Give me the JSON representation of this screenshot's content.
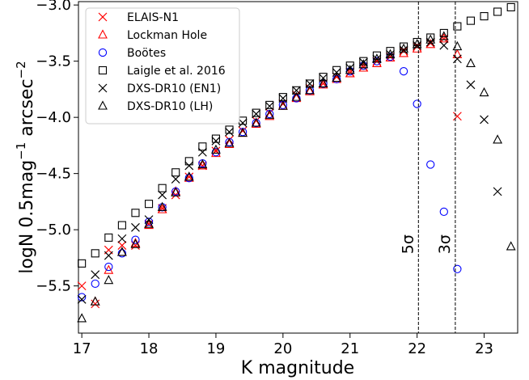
{
  "chart_data": {
    "type": "scatter",
    "xlabel": "K magnitude",
    "ylabel": "logN 0.5mag⁻¹ arcsec⁻²",
    "xlim": [
      16.95,
      23.5
    ],
    "ylim": [
      -5.92,
      -2.97
    ],
    "xticks": [
      17,
      18,
      19,
      20,
      21,
      22,
      23
    ],
    "yticks": [
      -5.5,
      -5.0,
      -4.5,
      -4.0,
      -3.5,
      -3.0
    ],
    "xtick_labels": [
      "17",
      "18",
      "19",
      "20",
      "21",
      "22",
      "23"
    ],
    "ytick_labels": [
      "−5.5",
      "−5.0",
      "−4.5",
      "−4.0",
      "−3.5",
      "−3.0"
    ],
    "legend_position": "top-left",
    "annotations": [
      {
        "text": "5σ",
        "x": 22.02,
        "line_x": 22.02
      },
      {
        "text": "3σ",
        "x": 22.57,
        "line_x": 22.57
      }
    ],
    "series": [
      {
        "name": "ELAIS-N1",
        "marker": "x",
        "color": "#ff0000",
        "x": [
          17.0,
          17.2,
          17.4,
          17.6,
          17.8,
          18.0,
          18.2,
          18.4,
          18.6,
          18.8,
          19.0,
          19.2,
          19.4,
          19.6,
          19.8,
          20.0,
          20.2,
          20.4,
          20.6,
          20.8,
          21.0,
          21.2,
          21.4,
          21.6,
          21.8,
          22.0,
          22.2,
          22.4,
          22.6
        ],
        "y": [
          -5.5,
          -5.66,
          -5.18,
          -5.14,
          -5.14,
          -4.95,
          -4.81,
          -4.69,
          -4.53,
          -4.43,
          -4.3,
          -4.2,
          -4.12,
          -4.03,
          -3.96,
          -3.88,
          -3.8,
          -3.74,
          -3.7,
          -3.64,
          -3.6,
          -3.55,
          -3.5,
          -3.46,
          -3.41,
          -3.37,
          -3.34,
          -3.3,
          -3.99
        ]
      },
      {
        "name": "Lockman Hole",
        "marker": "triangle",
        "color": "#ff0000",
        "x": [
          17.2,
          17.4,
          17.6,
          17.8,
          18.0,
          18.2,
          18.4,
          18.6,
          18.8,
          19.0,
          19.2,
          19.4,
          19.6,
          19.8,
          20.0,
          20.2,
          20.4,
          20.6,
          20.8,
          21.0,
          21.2,
          21.4,
          21.6,
          21.8,
          22.0,
          22.2,
          22.4,
          22.6
        ],
        "y": [
          -5.64,
          -5.36,
          -5.2,
          -5.12,
          -4.96,
          -4.82,
          -4.66,
          -4.54,
          -4.43,
          -4.32,
          -4.24,
          -4.14,
          -4.06,
          -3.99,
          -3.9,
          -3.83,
          -3.77,
          -3.71,
          -3.66,
          -3.61,
          -3.56,
          -3.52,
          -3.47,
          -3.43,
          -3.39,
          -3.35,
          -3.3,
          -3.44
        ]
      },
      {
        "name": "Boötes",
        "marker": "circle",
        "color": "#0000ff",
        "x": [
          17.0,
          17.2,
          17.4,
          17.6,
          17.8,
          18.0,
          18.2,
          18.4,
          18.6,
          18.8,
          19.0,
          19.2,
          19.4,
          19.6,
          19.8,
          20.0,
          20.2,
          20.4,
          20.6,
          20.8,
          21.0,
          21.2,
          21.4,
          21.6,
          21.8,
          22.0,
          22.2,
          22.4,
          22.6
        ],
        "y": [
          -5.6,
          -5.48,
          -5.33,
          -5.21,
          -5.09,
          -4.93,
          -4.8,
          -4.66,
          -4.54,
          -4.41,
          -4.31,
          -4.22,
          -4.13,
          -4.05,
          -3.97,
          -3.89,
          -3.83,
          -3.76,
          -3.7,
          -3.66,
          -3.59,
          -3.54,
          -3.5,
          -3.46,
          -3.59,
          -3.88,
          -4.42,
          -4.84,
          -5.35
        ]
      },
      {
        "name": "Laigle et al. 2016",
        "marker": "square",
        "color": "#000000",
        "x": [
          17.0,
          17.2,
          17.4,
          17.6,
          17.8,
          18.0,
          18.2,
          18.4,
          18.6,
          18.8,
          19.0,
          19.2,
          19.4,
          19.6,
          19.8,
          20.0,
          20.2,
          20.4,
          20.6,
          20.8,
          21.0,
          21.2,
          21.4,
          21.6,
          21.8,
          22.0,
          22.2,
          22.4,
          22.6,
          22.8,
          23.0,
          23.2,
          23.4
        ],
        "y": [
          -5.3,
          -5.21,
          -5.07,
          -4.96,
          -4.85,
          -4.77,
          -4.63,
          -4.49,
          -4.39,
          -4.26,
          -4.19,
          -4.11,
          -4.03,
          -3.96,
          -3.89,
          -3.82,
          -3.76,
          -3.7,
          -3.64,
          -3.58,
          -3.54,
          -3.5,
          -3.45,
          -3.41,
          -3.37,
          -3.33,
          -3.29,
          -3.25,
          -3.19,
          -3.14,
          -3.1,
          -3.06,
          -3.02
        ]
      },
      {
        "name": "DXS-DR10 (EN1)",
        "marker": "x",
        "color": "#000000",
        "x": [
          17.0,
          17.2,
          17.4,
          17.6,
          17.8,
          18.0,
          18.2,
          18.4,
          18.6,
          18.8,
          19.0,
          19.2,
          19.4,
          19.6,
          19.8,
          20.0,
          20.2,
          20.4,
          20.6,
          20.8,
          21.0,
          21.2,
          21.4,
          21.6,
          21.8,
          22.0,
          22.2,
          22.4,
          22.6,
          22.8,
          23.0,
          23.2
        ],
        "y": [
          -5.62,
          -5.4,
          -5.23,
          -5.08,
          -4.98,
          -4.91,
          -4.69,
          -4.55,
          -4.43,
          -4.31,
          -4.21,
          -4.13,
          -4.05,
          -3.97,
          -3.9,
          -3.83,
          -3.76,
          -3.7,
          -3.65,
          -3.6,
          -3.56,
          -3.51,
          -3.48,
          -3.44,
          -3.4,
          -3.36,
          -3.33,
          -3.36,
          -3.48,
          -3.71,
          -4.02,
          -4.66
        ]
      },
      {
        "name": "DXS-DR10 (LH)",
        "marker": "triangle",
        "color": "#000000",
        "x": [
          17.0,
          17.2,
          17.4,
          17.6,
          17.8,
          18.0,
          18.2,
          18.4,
          18.6,
          18.8,
          19.0,
          19.2,
          19.4,
          19.6,
          19.8,
          20.0,
          20.2,
          20.4,
          20.6,
          20.8,
          21.0,
          21.2,
          21.4,
          21.6,
          21.8,
          22.0,
          22.2,
          22.4,
          22.6,
          22.8,
          23.0,
          23.2,
          23.4
        ],
        "y": [
          -5.79,
          -5.64,
          -5.45,
          -5.2,
          -5.13,
          -4.95,
          -4.8,
          -4.67,
          -4.53,
          -4.42,
          -4.29,
          -4.23,
          -4.14,
          -4.05,
          -3.98,
          -3.9,
          -3.82,
          -3.76,
          -3.7,
          -3.65,
          -3.58,
          -3.53,
          -3.48,
          -3.44,
          -3.39,
          -3.35,
          -3.31,
          -3.28,
          -3.37,
          -3.52,
          -3.78,
          -4.2,
          -5.15
        ]
      }
    ]
  }
}
